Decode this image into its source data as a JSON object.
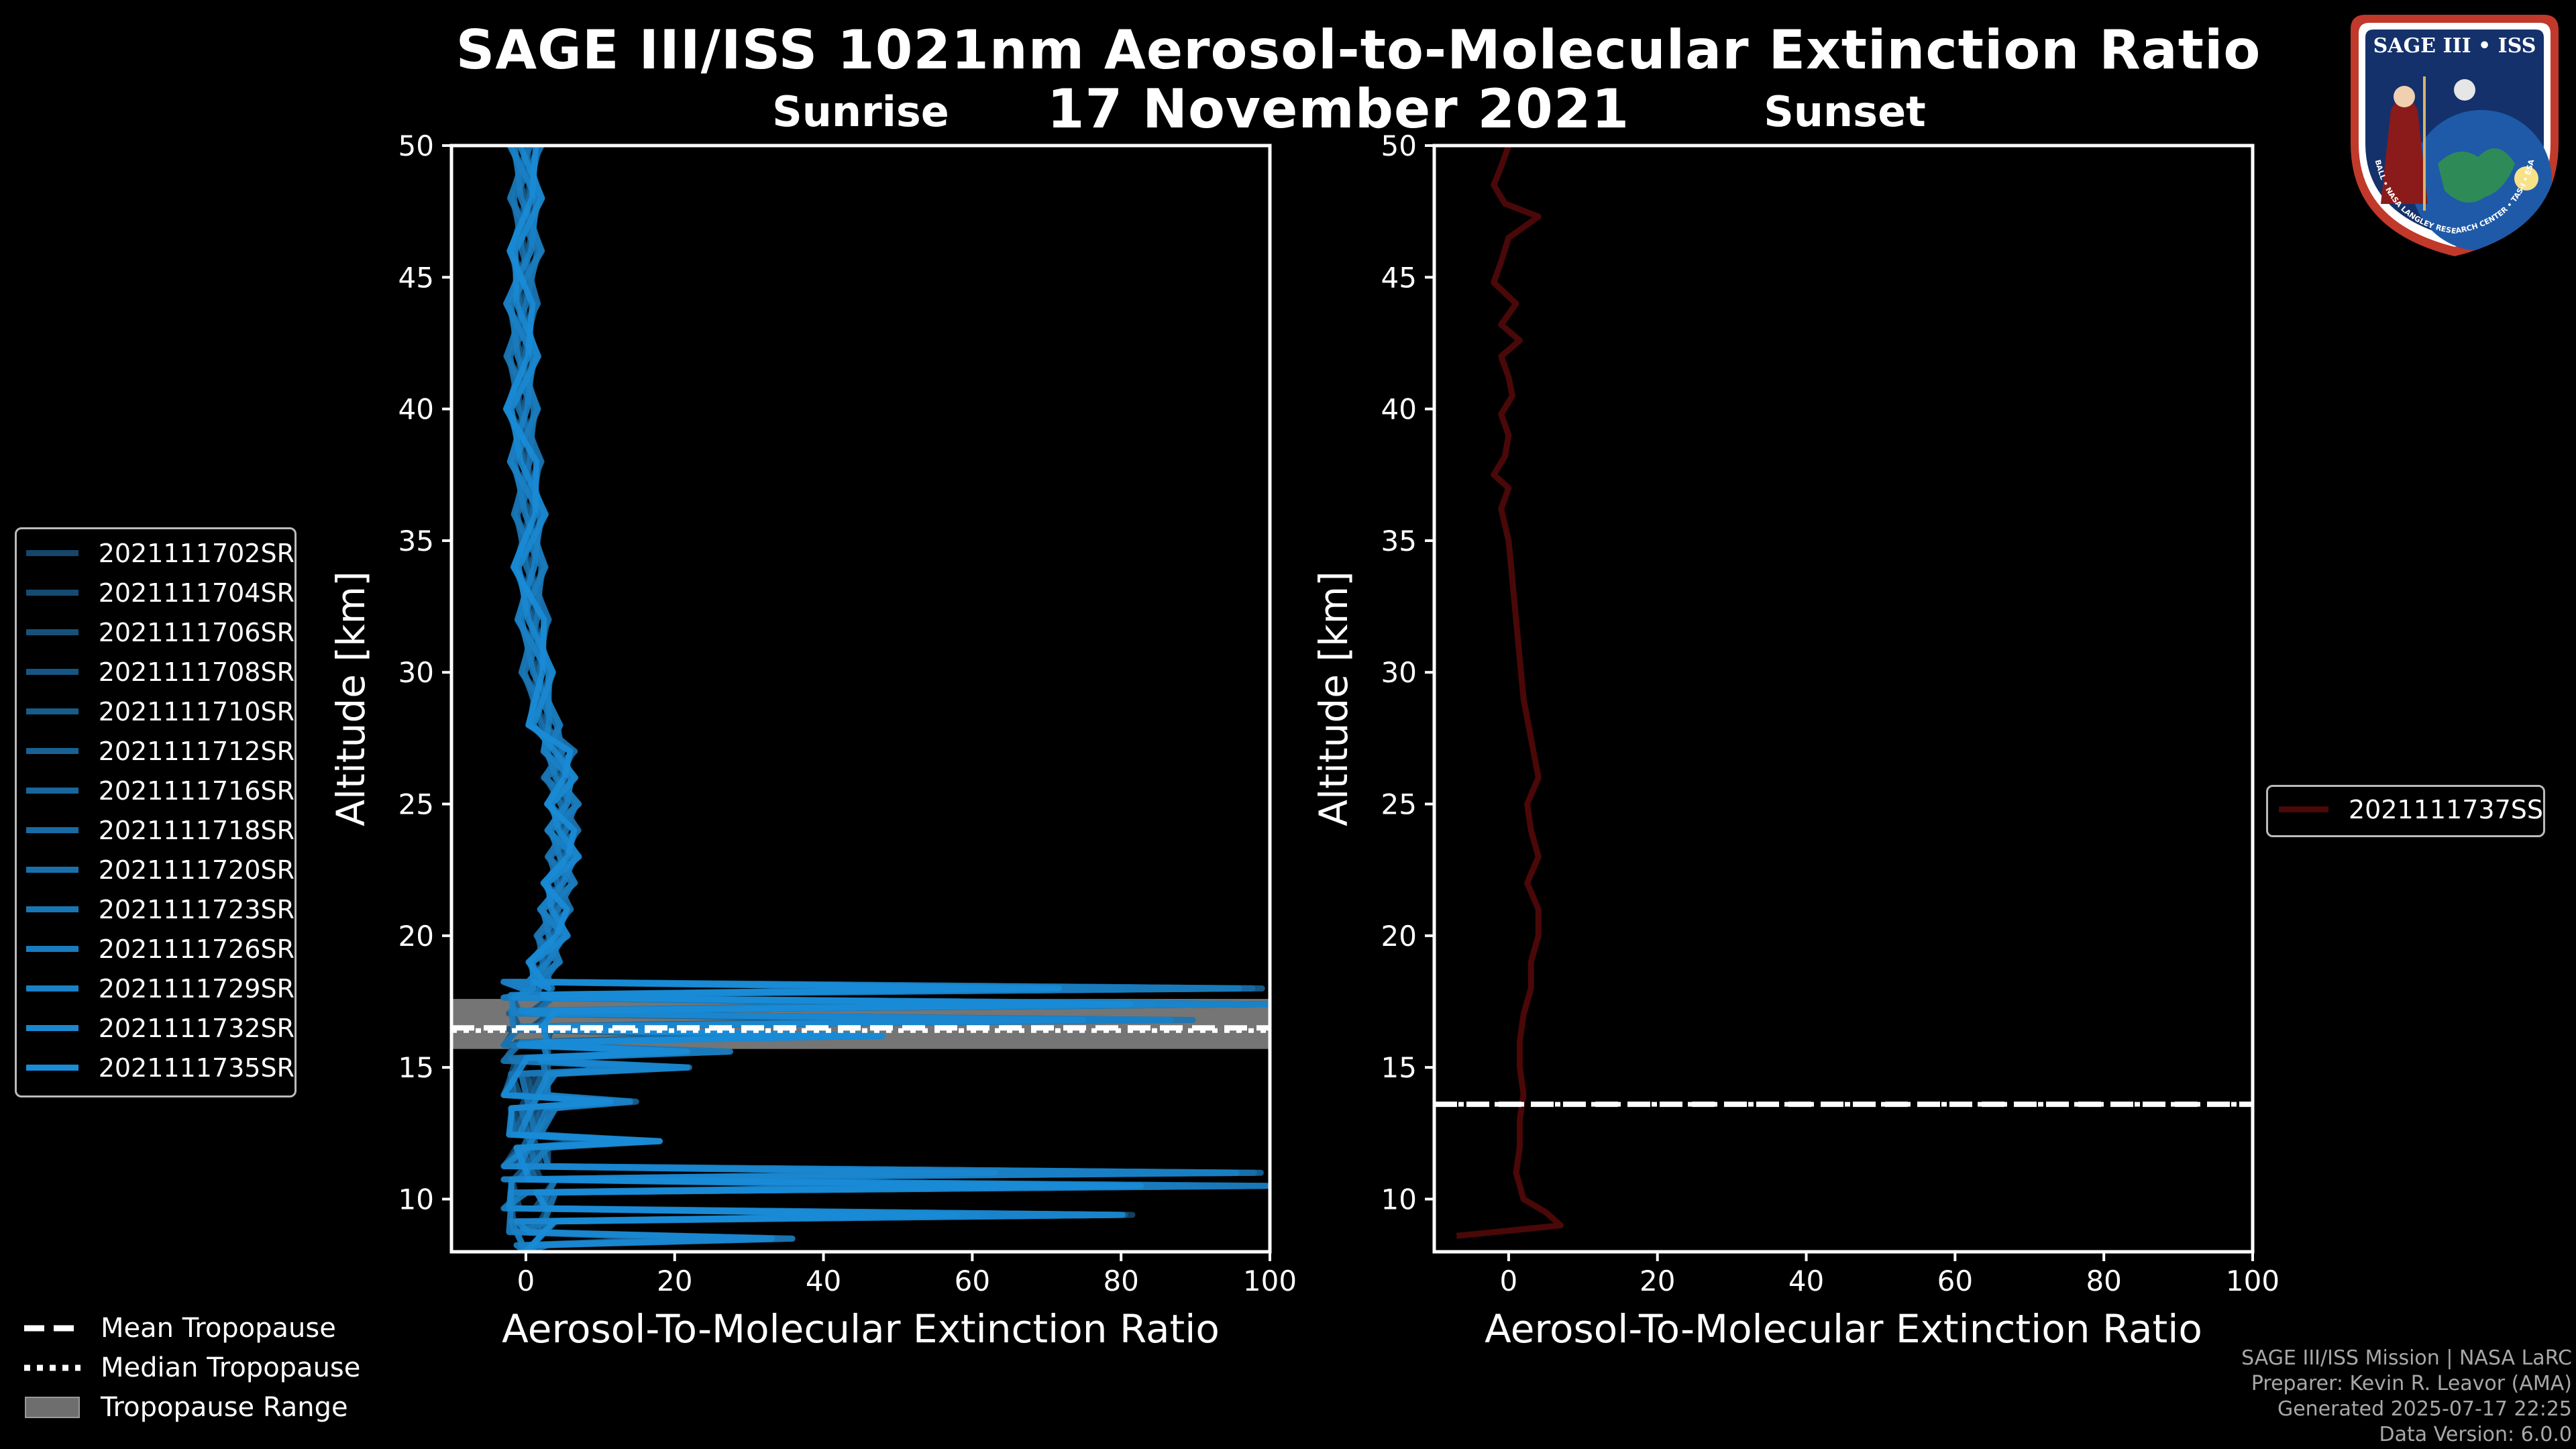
{
  "title": "SAGE III/ISS 1021nm Aerosol-to-Molecular Extinction Ratio",
  "date": "17 November 2021",
  "colors": {
    "sunrise": "#1f7fc4",
    "sunset": "#4a0808",
    "axis": "#ffffff",
    "tropo_band": "#8a8a8a"
  },
  "legend_sunrise": [
    "2021111702SR",
    "2021111704SR",
    "2021111706SR",
    "2021111708SR",
    "2021111710SR",
    "2021111712SR",
    "2021111716SR",
    "2021111718SR",
    "2021111720SR",
    "2021111723SR",
    "2021111726SR",
    "2021111729SR",
    "2021111732SR",
    "2021111735SR"
  ],
  "legend_sunset": [
    "2021111737SS"
  ],
  "bottom_legend": {
    "mean": "Mean Tropopause",
    "median": "Median Tropopause",
    "range": "Tropopause Range"
  },
  "credits": {
    "line1": "SAGE III/ISS Mission | NASA LaRC",
    "line2": "Preparer: Kevin R. Leavor (AMA)",
    "line3": "Generated 2025-07-17 22:25",
    "line4": "Data Version: 6.0.0"
  },
  "badge": {
    "title": "SAGE III • ISS",
    "ring": "BALL • NASA LANGLEY RESEARCH CENTER • TAS-I • ESA"
  },
  "chart_data": [
    {
      "type": "line",
      "panel": "sunrise",
      "title": "Sunrise",
      "xlabel": "Aerosol-To-Molecular Extinction Ratio",
      "ylabel": "Altitude [km]",
      "xlim": [
        -10,
        100
      ],
      "ylim": [
        8,
        50
      ],
      "xticks": [
        0,
        20,
        40,
        60,
        80,
        100
      ],
      "yticks": [
        10,
        15,
        20,
        25,
        30,
        35,
        40,
        45,
        50
      ],
      "tropopause": {
        "mean": 16.5,
        "median": 16.4,
        "range": [
          15.7,
          17.6
        ]
      },
      "profile": {
        "alt": [
          50,
          48,
          46,
          44,
          42,
          40,
          38,
          36,
          34,
          32,
          30,
          28,
          27,
          26,
          25,
          24,
          23,
          22,
          21,
          20,
          19,
          18
        ],
        "ratio": [
          0,
          0,
          0,
          -0.5,
          -0.5,
          -0.5,
          0,
          0.5,
          0.5,
          1,
          1.5,
          2.5,
          4.5,
          4.5,
          5,
          5,
          5,
          4.5,
          4,
          3.5,
          2.5,
          1.5
        ]
      },
      "spikes": [
        {
          "alt": 18.0,
          "ratio": 100
        },
        {
          "alt": 17.4,
          "ratio": 100
        },
        {
          "alt": 16.8,
          "ratio": 90
        },
        {
          "alt": 16.2,
          "ratio": 48
        },
        {
          "alt": 15.6,
          "ratio": 28
        },
        {
          "alt": 15.0,
          "ratio": 22
        },
        {
          "alt": 13.7,
          "ratio": 15
        },
        {
          "alt": 12.2,
          "ratio": 18
        },
        {
          "alt": 11.0,
          "ratio": 100
        },
        {
          "alt": 10.5,
          "ratio": 100
        },
        {
          "alt": 9.4,
          "ratio": 83
        },
        {
          "alt": 8.5,
          "ratio": 36
        }
      ],
      "series": [
        "2021111702SR",
        "2021111704SR",
        "2021111706SR",
        "2021111708SR",
        "2021111710SR",
        "2021111712SR",
        "2021111716SR",
        "2021111718SR",
        "2021111720SR",
        "2021111723SR",
        "2021111726SR",
        "2021111729SR",
        "2021111732SR",
        "2021111735SR"
      ]
    },
    {
      "type": "line",
      "panel": "sunset",
      "title": "Sunset",
      "xlabel": "Aerosol-To-Molecular Extinction Ratio",
      "ylabel": "Altitude [km]",
      "xlim": [
        -10,
        100
      ],
      "ylim": [
        8,
        50
      ],
      "xticks": [
        0,
        20,
        40,
        60,
        80,
        100
      ],
      "yticks": [
        10,
        15,
        20,
        25,
        30,
        35,
        40,
        45,
        50
      ],
      "tropopause": {
        "mean": 13.6,
        "median": 13.6,
        "range": [
          13.6,
          13.6
        ]
      },
      "series": [
        {
          "name": "2021111737SS",
          "alt": [
            50,
            49.2,
            48.5,
            47.8,
            47.3,
            46.5,
            45.6,
            44.8,
            44.0,
            43.2,
            42.6,
            42.0,
            41.2,
            40.5,
            39.8,
            39.0,
            38.2,
            37.5,
            37.0,
            36.2,
            35.0,
            33.5,
            32.0,
            30.5,
            29.0,
            27.5,
            26.0,
            25.0,
            24.0,
            23.0,
            22.0,
            21.0,
            20.0,
            19.0,
            18.0,
            17.0,
            16.0,
            15.0,
            14.0,
            13.0,
            12.0,
            11.0,
            10.0,
            9.5,
            9.0,
            8.6
          ],
          "ratio": [
            0,
            -1,
            -2,
            -0.5,
            4,
            0,
            -1,
            -2,
            1,
            -1,
            1.5,
            -1,
            0,
            0.5,
            -1,
            0,
            -0.5,
            -2,
            0,
            -1,
            0,
            0.5,
            1,
            1.5,
            2,
            3,
            4,
            2.5,
            3,
            4,
            2.5,
            4,
            4,
            3,
            3,
            2,
            1.5,
            1.5,
            2,
            1.5,
            1.5,
            1,
            2,
            5,
            7,
            -7
          ]
        }
      ]
    }
  ]
}
